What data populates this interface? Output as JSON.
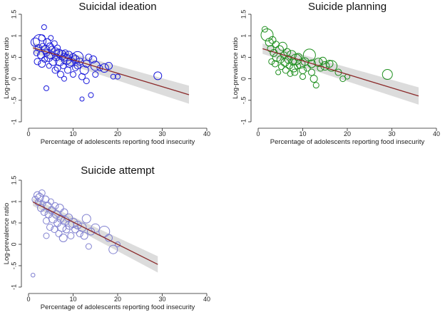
{
  "chart_data": [
    {
      "type": "scatter",
      "title": "Suicidal ideation",
      "xlabel": "Percentage of adolescents reporting food insecurity",
      "ylabel": "Log-prevalence ratio",
      "xlim": [
        0,
        40
      ],
      "ylim": [
        -1,
        1.5
      ],
      "xticks": [
        "0",
        "10",
        "20",
        "30",
        "40"
      ],
      "yticks": [
        "-1",
        "-.5",
        "0",
        ".5",
        "1",
        "1.5"
      ],
      "marker_color": "#1a1adb",
      "fit": {
        "x": [
          1,
          36
        ],
        "y": [
          0.72,
          -0.37
        ],
        "ci_lower": [
          0.6,
          -0.58
        ],
        "ci_upper": [
          0.84,
          -0.16
        ]
      },
      "points": [
        [
          1.5,
          0.85,
          0.8
        ],
        [
          1.8,
          0.6,
          0.4
        ],
        [
          2,
          0.4,
          0.5
        ],
        [
          2.2,
          0.72,
          0.5
        ],
        [
          2.5,
          0.88,
          1.4
        ],
        [
          2.8,
          0.55,
          0.6
        ],
        [
          3,
          0.95,
          0.5
        ],
        [
          3,
          0.35,
          0.6
        ],
        [
          3.2,
          0.75,
          0.5
        ],
        [
          3.5,
          1.2,
          0.3
        ],
        [
          3.6,
          0.45,
          0.4
        ],
        [
          3.8,
          0.68,
          0.7
        ],
        [
          4,
          0.6,
          0.5
        ],
        [
          4,
          -0.22,
          0.3
        ],
        [
          4.2,
          0.85,
          0.6
        ],
        [
          4.5,
          0.5,
          0.8
        ],
        [
          4.6,
          0.3,
          0.3
        ],
        [
          4.8,
          0.75,
          0.6
        ],
        [
          5,
          0.55,
          0.7
        ],
        [
          5,
          0.95,
          0.3
        ],
        [
          5.2,
          0.68,
          0.5
        ],
        [
          5.5,
          0.4,
          0.7
        ],
        [
          5.8,
          0.82,
          0.4
        ],
        [
          6,
          0.62,
          0.8
        ],
        [
          6,
          0.2,
          0.5
        ],
        [
          6.2,
          0.5,
          0.6
        ],
        [
          6.5,
          0.72,
          0.4
        ],
        [
          6.5,
          0.25,
          0.5
        ],
        [
          6.8,
          0.6,
          0.7
        ],
        [
          7,
          0.4,
          0.8
        ],
        [
          7.2,
          0.1,
          0.5
        ],
        [
          7.5,
          0.55,
          0.9
        ],
        [
          7.8,
          0.3,
          0.4
        ],
        [
          8,
          0.5,
          0.7
        ],
        [
          8,
          0.0,
          0.3
        ],
        [
          8.2,
          0.6,
          0.5
        ],
        [
          8.5,
          0.45,
          1.0
        ],
        [
          8.8,
          0.2,
          0.5
        ],
        [
          9,
          0.55,
          0.7
        ],
        [
          9.2,
          0.35,
          0.6
        ],
        [
          9.5,
          0.4,
          0.8
        ],
        [
          10,
          0.5,
          0.6
        ],
        [
          10,
          0.1,
          0.4
        ],
        [
          10.5,
          0.45,
          0.7
        ],
        [
          10.5,
          0.25,
          0.4
        ],
        [
          11,
          0.5,
          1.2
        ],
        [
          11,
          0.3,
          0.5
        ],
        [
          11.5,
          0.4,
          0.6
        ],
        [
          12,
          -0.47,
          0.2
        ],
        [
          12,
          0.05,
          0.5
        ],
        [
          12.5,
          0.2,
          0.8
        ],
        [
          13,
          0.35,
          0.6
        ],
        [
          13,
          -0.05,
          0.4
        ],
        [
          13.5,
          0.5,
          0.5
        ],
        [
          14,
          -0.38,
          0.3
        ],
        [
          14.5,
          0.45,
          0.6
        ],
        [
          15,
          0.3,
          0.9
        ],
        [
          15,
          0.1,
          0.4
        ],
        [
          16,
          0.25,
          0.4
        ],
        [
          17,
          0.25,
          0.8
        ],
        [
          18,
          0.3,
          0.6
        ],
        [
          19,
          0.05,
          0.3
        ],
        [
          20,
          0.05,
          0.3
        ],
        [
          29,
          0.07,
          0.7
        ]
      ]
    },
    {
      "type": "scatter",
      "title": "Suicide planning",
      "xlabel": "Percentage of adolescents reporting food insecurity",
      "ylabel": "Log-prevalence ratio",
      "xlim": [
        0,
        40
      ],
      "ylim": [
        -1,
        1.5
      ],
      "xticks": [
        "0",
        "10",
        "20",
        "30",
        "40"
      ],
      "yticks": [
        "-1",
        "-.5",
        "0",
        ".5",
        "1",
        "1.5"
      ],
      "marker_color": "#1e8f1e",
      "fit": {
        "x": [
          1,
          36
        ],
        "y": [
          0.7,
          -0.4
        ],
        "ci_lower": [
          0.58,
          -0.6
        ],
        "ci_upper": [
          0.82,
          -0.2
        ]
      },
      "points": [
        [
          1.5,
          1.15,
          0.4
        ],
        [
          2,
          1.02,
          1.3
        ],
        [
          2.5,
          0.85,
          0.7
        ],
        [
          2.8,
          0.7,
          0.5
        ],
        [
          3,
          0.4,
          0.4
        ],
        [
          3.2,
          0.9,
          0.6
        ],
        [
          3.5,
          0.6,
          0.6
        ],
        [
          3.8,
          0.35,
          0.5
        ],
        [
          4,
          0.8,
          0.5
        ],
        [
          4.2,
          0.5,
          0.8
        ],
        [
          4.5,
          0.15,
          0.3
        ],
        [
          4.8,
          0.68,
          0.7
        ],
        [
          5,
          0.45,
          0.6
        ],
        [
          5.2,
          0.28,
          0.4
        ],
        [
          5.5,
          0.75,
          0.8
        ],
        [
          5.8,
          0.55,
          0.5
        ],
        [
          6,
          0.38,
          0.7
        ],
        [
          6.2,
          0.2,
          0.5
        ],
        [
          6.5,
          0.62,
          0.6
        ],
        [
          6.8,
          0.45,
          0.7
        ],
        [
          7,
          0.3,
          0.5
        ],
        [
          7.2,
          0.12,
          0.4
        ],
        [
          7.5,
          0.55,
          0.9
        ],
        [
          7.8,
          0.4,
          0.6
        ],
        [
          8,
          0.25,
          0.7
        ],
        [
          8.2,
          0.15,
          0.5
        ],
        [
          8.5,
          0.45,
          1.1
        ],
        [
          8.8,
          0.3,
          0.5
        ],
        [
          9,
          0.5,
          0.7
        ],
        [
          9.5,
          0.35,
          0.9
        ],
        [
          10,
          0.2,
          0.6
        ],
        [
          10,
          0.05,
          0.4
        ],
        [
          10.5,
          0.4,
          0.7
        ],
        [
          11,
          0.25,
          0.5
        ],
        [
          11.5,
          0.55,
          1.3
        ],
        [
          12,
          0.35,
          0.7
        ],
        [
          12,
          0.15,
          0.5
        ],
        [
          12.5,
          0.0,
          0.6
        ],
        [
          13,
          -0.15,
          0.4
        ],
        [
          13.5,
          0.38,
          0.8
        ],
        [
          14,
          0.25,
          0.5
        ],
        [
          14.5,
          0.42,
          0.6
        ],
        [
          15,
          0.3,
          0.8
        ],
        [
          16,
          0.35,
          0.6
        ],
        [
          16.5,
          0.3,
          1.1
        ],
        [
          18,
          0.15,
          0.5
        ],
        [
          19,
          0.0,
          0.4
        ],
        [
          20,
          0.05,
          0.3
        ],
        [
          29,
          0.1,
          1.0
        ]
      ]
    },
    {
      "type": "scatter",
      "title": "Suicide attempt",
      "xlabel": "Percentage of adolescents reporting food insecurity",
      "ylabel": "Log-prevalence ratio",
      "xlim": [
        0,
        40
      ],
      "ylim": [
        -1,
        1.5
      ],
      "xticks": [
        "0",
        "10",
        "20",
        "30",
        "40"
      ],
      "yticks": [
        "-1",
        "-.5",
        "0",
        ".5",
        "1",
        "1.5"
      ],
      "marker_color": "#8080d0",
      "fit": {
        "x": [
          1,
          29
        ],
        "y": [
          0.99,
          -0.47
        ],
        "ci_lower": [
          0.9,
          -0.66
        ],
        "ci_upper": [
          1.08,
          -0.28
        ]
      },
      "points": [
        [
          1,
          -0.72,
          0.15
        ],
        [
          1.5,
          1.05,
          0.5
        ],
        [
          2,
          1.15,
          0.6
        ],
        [
          2.2,
          0.98,
          0.5
        ],
        [
          2.5,
          1.1,
          0.7
        ],
        [
          2.8,
          0.85,
          0.6
        ],
        [
          3,
          1.2,
          0.5
        ],
        [
          3.2,
          0.95,
          0.4
        ],
        [
          3.5,
          0.75,
          0.5
        ],
        [
          3.8,
          1.05,
          0.6
        ],
        [
          4,
          0.55,
          0.5
        ],
        [
          4,
          0.2,
          0.4
        ],
        [
          4.2,
          0.9,
          0.7
        ],
        [
          4.5,
          0.7,
          0.6
        ],
        [
          4.8,
          0.4,
          0.5
        ],
        [
          5,
          1.0,
          0.4
        ],
        [
          5.2,
          0.8,
          0.6
        ],
        [
          5.5,
          0.6,
          0.8
        ],
        [
          5.8,
          0.35,
          0.5
        ],
        [
          6,
          0.9,
          0.5
        ],
        [
          6.2,
          0.7,
          0.7
        ],
        [
          6.5,
          0.5,
          0.6
        ],
        [
          6.8,
          0.25,
          0.5
        ],
        [
          7,
          0.85,
          0.7
        ],
        [
          7.2,
          0.6,
          0.6
        ],
        [
          7.5,
          0.4,
          0.8
        ],
        [
          7.8,
          0.15,
          0.7
        ],
        [
          8,
          0.75,
          0.6
        ],
        [
          8.2,
          0.55,
          0.8
        ],
        [
          8.5,
          0.35,
          0.6
        ],
        [
          9,
          0.62,
          0.7
        ],
        [
          9.2,
          0.45,
          0.8
        ],
        [
          9.5,
          0.2,
          0.5
        ],
        [
          10,
          0.5,
          0.9
        ],
        [
          10.5,
          0.35,
          0.6
        ],
        [
          11,
          0.45,
          0.7
        ],
        [
          11.5,
          0.25,
          0.5
        ],
        [
          12,
          0.4,
          0.8
        ],
        [
          12.5,
          0.2,
          0.6
        ],
        [
          13,
          0.6,
          0.8
        ],
        [
          13.5,
          -0.05,
          0.4
        ],
        [
          14,
          0.3,
          0.6
        ],
        [
          15,
          0.38,
          0.8
        ],
        [
          17,
          0.3,
          1.1
        ],
        [
          18,
          0.15,
          0.6
        ],
        [
          19,
          -0.12,
          0.8
        ],
        [
          20,
          0.0,
          0.3
        ]
      ]
    }
  ]
}
